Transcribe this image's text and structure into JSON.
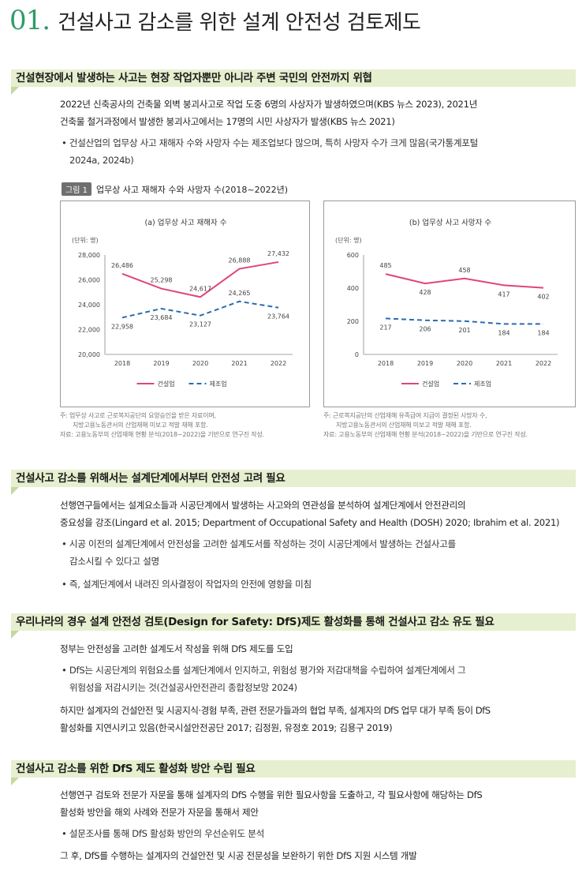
{
  "title": {
    "number": "01.",
    "text": "건설사고 감소를 위한 설계 안전성 검토제도"
  },
  "sections": [
    {
      "heading": "건설현장에서 발생하는 사고는 현장 작업자뿐만 아니라 주변 국민의 안전까지 위협",
      "para1_line1": "2022년 신축공사의 건축물 외벽 붕괴사고로 작업 도중 6명의 사상자가 발생하였으며(KBS 뉴스 2023), 2021년",
      "para1_line2": "건축물 철거과정에서 발생한 붕괴사고에서는 17명의 시민 사상자가 발생(KBS 뉴스 2021)",
      "bullet1_line1": "• 건설산업의 업무상 사고 재해자 수와 사망자 수는 제조업보다 많으며, 특히 사망자 수가 크게 많음(국가통계포털",
      "bullet1_line2": "2024a, 2024b)"
    },
    {
      "heading": "건설사고 감소를 위해서는 설계단계에서부터 안전성 고려 필요",
      "para1_line1": "선행연구들에서는 설계요소들과 시공단계에서 발생하는 사고와의 연관성을 분석하여 설계단계에서 안전관리의",
      "para1_line2": "중요성을 강조(Lingard et al. 2015; Department of Occupational Safety and Health (DOSH) 2020; Ibrahim et al. 2021)",
      "bullet1_line1": "• 시공 이전의 설계단계에서 안전성을 고려한 설계도서를 작성하는 것이 시공단계에서 발생하는 건설사고를",
      "bullet1_line2": "감소시킬 수 있다고 설명",
      "bullet2": "• 즉, 설계단계에서 내려진 의사결정이 작업자의 안전에 영향을 미침"
    },
    {
      "heading": "우리나라의 경우 설계 안전성 검토(Design for Safety: DfS)제도 활성화를 통해 건설사고 감소 유도 필요",
      "para1": "정부는 안전성을 고려한 설계도서 작성을 위해 DfS 제도를 도입",
      "bullet1_line1": "• DfS는 시공단계의 위험요소를 설계단계에서 인지하고, 위험성 평가와 저감대책을 수립하여 설계단계에서 그",
      "bullet1_line2": "위험성을 저감시키는 것(건설공사안전관리 종합정보망 2024)",
      "para2_line1": "하지만 설계자의 건설안전 및 시공지식·경험 부족, 관련 전문가들과의 협업 부족, 설계자의 DfS 업무 대가 부족 등이 DfS",
      "para2_line2": "활성화를 지연시키고 있음(한국시설안전공단 2017; 김정원, 유정호 2019; 김용구 2019)"
    },
    {
      "heading": "건설사고 감소를 위한 DfS 제도 활성화 방안 수립 필요",
      "para1_line1": "선행연구 검토와 전문가 자문을 통해 설계자의 DfS 수행을 위한 필요사항을 도출하고, 각 필요사항에 해당하는 DfS",
      "para1_line2": "활성화 방안을 해외 사례와 전문가 자문을 통해서 제안",
      "bullet1": "• 설문조사를 통해 DfS 활성화 방안의 우선순위도 분석",
      "para2": "그 후, DfS를 수행하는 설계자의 건설안전 및 시공 전문성을 보완하기 위한 DfS 지원 시스템 개발"
    }
  ],
  "figure": {
    "badge": "그림 1",
    "caption": "업무상 사고 재해자 수와 사망자 수(2018~2022년)"
  },
  "notes": {
    "left_line1": "주: 업무상 사고로 근로복지공단의 요양승인을 받은 자료이며,",
    "left_line2": "지방고용노동관서의 산업재해 미보고 적발 재해 포함.",
    "left_line3": "자료: 고용노동부의 산업재해 현황 분석(2018~2022)을 기반으로 연구진 작성.",
    "right_line1": "주: 근로복지공단의 산업재해 유족급여 지급이 결정된 사망자 수,",
    "right_line2": "지방고용노동관서의 산업재해 미보고 적발 재해 포함.",
    "right_line3": "자료: 고용노동부의 산업재해 현황 분석(2018~2022)을 기반으로 연구진 작성."
  },
  "colors": {
    "accent": "#2f9b6a",
    "construction": "#e0457b",
    "manufacturing": "#2b6cb0",
    "heading_bg": "#e6efcf"
  },
  "chart_data": [
    {
      "type": "line",
      "title": "(a) 업무상 사고 재해자 수",
      "unit": "(단위: 명)",
      "x": [
        "2018",
        "2019",
        "2020",
        "2021",
        "2022"
      ],
      "ylim": [
        20000,
        28000
      ],
      "yticks": [
        "20,000",
        "22,000",
        "24,000",
        "26,000",
        "28,000"
      ],
      "series": [
        {
          "name": "건설업",
          "values": [
            26486,
            25298,
            24617,
            26888,
            27432
          ],
          "labels": [
            "26,486",
            "25,298",
            "24,617",
            "26,888",
            "27,432"
          ],
          "style": "solid"
        },
        {
          "name": "제조업",
          "values": [
            22958,
            23684,
            23127,
            24265,
            23764
          ],
          "labels": [
            "22,958",
            "23,684",
            "23,127",
            "24,265",
            "23,764"
          ],
          "style": "dashed"
        }
      ],
      "legend": "bottom-center"
    },
    {
      "type": "line",
      "title": "(b) 업무상 사고 사망자 수",
      "unit": "(단위: 명)",
      "x": [
        "2018",
        "2019",
        "2020",
        "2021",
        "2022"
      ],
      "ylim": [
        0,
        600
      ],
      "yticks": [
        "0",
        "200",
        "400",
        "600"
      ],
      "series": [
        {
          "name": "건설업",
          "values": [
            485,
            428,
            458,
            417,
            402
          ],
          "labels": [
            "485",
            "428",
            "458",
            "417",
            "402"
          ],
          "style": "solid"
        },
        {
          "name": "제조업",
          "values": [
            217,
            206,
            201,
            184,
            184
          ],
          "labels": [
            "217",
            "206",
            "201",
            "184",
            "184"
          ],
          "style": "dashed"
        }
      ],
      "legend": "bottom-center"
    }
  ]
}
